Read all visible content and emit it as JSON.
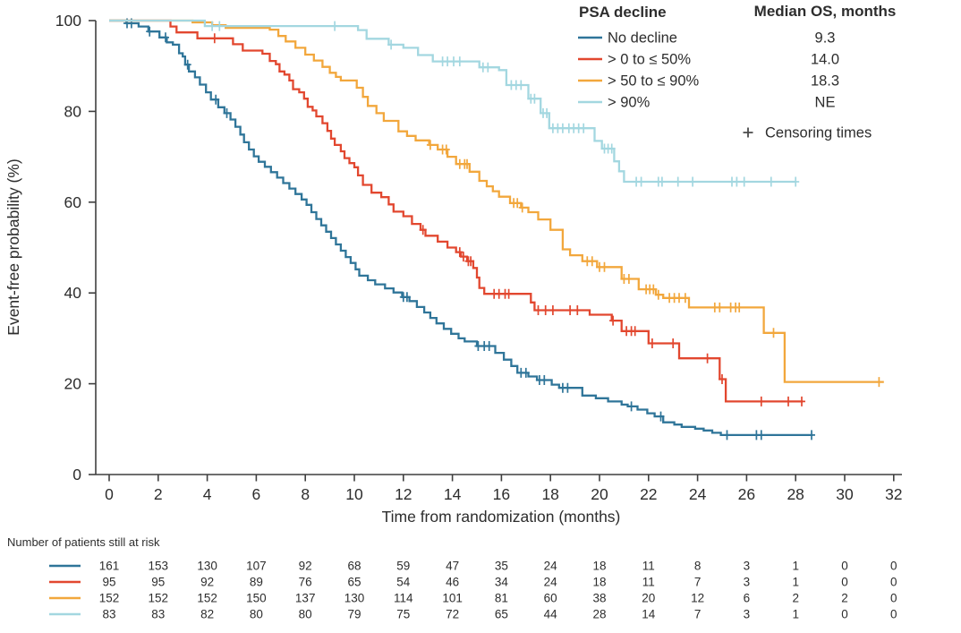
{
  "figure": {
    "y_axis": {
      "label": "Event-free probability (%)",
      "ticks": [
        0,
        20,
        40,
        60,
        80,
        100
      ]
    },
    "x_axis": {
      "label": "Time from randomization (months)",
      "ticks": [
        0,
        2,
        4,
        6,
        8,
        10,
        12,
        14,
        16,
        18,
        20,
        22,
        24,
        26,
        28,
        30,
        32
      ]
    },
    "legend": {
      "title": "PSA decline",
      "median_header": "Median OS, months",
      "censoring_symbol": "+",
      "censoring_label": "Censoring times"
    },
    "risk_table": {
      "title": "Number of patients still at risk"
    }
  },
  "chart_data": {
    "type": "line",
    "subtype": "kaplan-meier-step",
    "title": "",
    "xlabel": "Time from randomization (months)",
    "ylabel": "Event-free probability (%)",
    "xlim": [
      0,
      32
    ],
    "ylim": [
      0,
      100
    ],
    "grid": false,
    "legend_position": "top-right",
    "at_risk_times": [
      0,
      2,
      4,
      6,
      8,
      10,
      12,
      14,
      16,
      18,
      20,
      22,
      24,
      26,
      28,
      30,
      32
    ],
    "series": [
      {
        "name": "No decline",
        "median_os": "9.3",
        "color": "#2f7599",
        "steps": [
          [
            0,
            100
          ],
          [
            0.7,
            99.4
          ],
          [
            1.2,
            98.7
          ],
          [
            1.6,
            97.6
          ],
          [
            2.05,
            96.3
          ],
          [
            2.35,
            95.2
          ],
          [
            2.6,
            94.7
          ],
          [
            2.85,
            92.8
          ],
          [
            3.0,
            92.1
          ],
          [
            3.1,
            90.3
          ],
          [
            3.25,
            88.8
          ],
          [
            3.5,
            87.5
          ],
          [
            3.7,
            85.9
          ],
          [
            3.95,
            84.2
          ],
          [
            4.15,
            82.6
          ],
          [
            4.45,
            80.9
          ],
          [
            4.7,
            79.6
          ],
          [
            4.95,
            78.2
          ],
          [
            5.15,
            76.6
          ],
          [
            5.35,
            74.9
          ],
          [
            5.5,
            73.2
          ],
          [
            5.7,
            71.6
          ],
          [
            5.9,
            70.1
          ],
          [
            6.1,
            68.9
          ],
          [
            6.35,
            67.8
          ],
          [
            6.6,
            66.6
          ],
          [
            6.85,
            65.4
          ],
          [
            7.1,
            64.2
          ],
          [
            7.35,
            63
          ],
          [
            7.6,
            61.8
          ],
          [
            7.85,
            60.6
          ],
          [
            8.05,
            59.4
          ],
          [
            8.25,
            57.8
          ],
          [
            8.45,
            56.3
          ],
          [
            8.65,
            54.9
          ],
          [
            8.85,
            53.5
          ],
          [
            9.05,
            52.1
          ],
          [
            9.25,
            50.7
          ],
          [
            9.45,
            49.3
          ],
          [
            9.65,
            47.9
          ],
          [
            9.85,
            46.6
          ],
          [
            10.05,
            45.2
          ],
          [
            10.2,
            43.8
          ],
          [
            10.55,
            42.8
          ],
          [
            10.85,
            41.9
          ],
          [
            11.25,
            41
          ],
          [
            11.6,
            40.1
          ],
          [
            11.95,
            39.1
          ],
          [
            12.25,
            38.2
          ],
          [
            12.55,
            36.9
          ],
          [
            12.85,
            35.7
          ],
          [
            13.1,
            34.5
          ],
          [
            13.35,
            33.3
          ],
          [
            13.65,
            32.1
          ],
          [
            13.95,
            31
          ],
          [
            14.25,
            30
          ],
          [
            14.5,
            29.3
          ],
          [
            15,
            28.3
          ],
          [
            15.75,
            26.8
          ],
          [
            16.1,
            25.3
          ],
          [
            16.4,
            23.9
          ],
          [
            16.65,
            22.4
          ],
          [
            17.1,
            21.6
          ],
          [
            17.45,
            20.8
          ],
          [
            18.05,
            19.8
          ],
          [
            18.35,
            19.1
          ],
          [
            19.3,
            17.4
          ],
          [
            19.85,
            16.8
          ],
          [
            20.35,
            16.1
          ],
          [
            20.9,
            15.4
          ],
          [
            21.15,
            15
          ],
          [
            21.55,
            14.3
          ],
          [
            21.95,
            13.5
          ],
          [
            22.25,
            12.8
          ],
          [
            22.6,
            11.5
          ],
          [
            23.05,
            11
          ],
          [
            23.35,
            10.5
          ],
          [
            23.9,
            10.1
          ],
          [
            24.25,
            9.7
          ],
          [
            24.6,
            9.2
          ],
          [
            24.95,
            8.7
          ],
          [
            28.7,
            8.7
          ]
        ],
        "censor_times": [
          0.73,
          0.91,
          1.65,
          2.3,
          3.2,
          4.35,
          4.8,
          12.0,
          12.15,
          15.05,
          15.3,
          15.5,
          16.8,
          17.0,
          17.55,
          17.75,
          18.5,
          18.7,
          21.3,
          22.5,
          25.2,
          26.4,
          26.6,
          28.65
        ],
        "at_risk": [
          161,
          153,
          130,
          107,
          92,
          68,
          59,
          47,
          35,
          24,
          18,
          11,
          8,
          3,
          1,
          0,
          0
        ]
      },
      {
        "name": "> 0 to ≤ 50%",
        "median_os": "14.0",
        "color": "#e2472f",
        "steps": [
          [
            0,
            100
          ],
          [
            2.5,
            98.7
          ],
          [
            2.75,
            97.4
          ],
          [
            3.6,
            96.1
          ],
          [
            5.05,
            94.8
          ],
          [
            5.45,
            93.4
          ],
          [
            6.25,
            92.7
          ],
          [
            6.55,
            91.1
          ],
          [
            6.8,
            90.4
          ],
          [
            6.95,
            88.8
          ],
          [
            7.15,
            88.1
          ],
          [
            7.35,
            86.8
          ],
          [
            7.5,
            84.9
          ],
          [
            7.75,
            84.2
          ],
          [
            7.95,
            82.8
          ],
          [
            8.1,
            81
          ],
          [
            8.3,
            80.2
          ],
          [
            8.45,
            78.9
          ],
          [
            8.7,
            77.4
          ],
          [
            8.9,
            75.7
          ],
          [
            9.05,
            74
          ],
          [
            9.2,
            72.6
          ],
          [
            9.45,
            71.2
          ],
          [
            9.6,
            69.7
          ],
          [
            9.8,
            68.6
          ],
          [
            10,
            67.7
          ],
          [
            10.15,
            65.9
          ],
          [
            10.35,
            63.8
          ],
          [
            10.7,
            62.1
          ],
          [
            11.1,
            61.1
          ],
          [
            11.4,
            59.5
          ],
          [
            11.6,
            57.9
          ],
          [
            12,
            56.9
          ],
          [
            12.35,
            55.2
          ],
          [
            12.7,
            53.9
          ],
          [
            12.9,
            52.6
          ],
          [
            13.4,
            51.3
          ],
          [
            13.8,
            50
          ],
          [
            14.15,
            49
          ],
          [
            14.35,
            48
          ],
          [
            14.6,
            47
          ],
          [
            14.85,
            45.5
          ],
          [
            15,
            43.4
          ],
          [
            15.1,
            41.1
          ],
          [
            15.3,
            39.8
          ],
          [
            17.2,
            37.9
          ],
          [
            17.35,
            36.2
          ],
          [
            19.6,
            35.2
          ],
          [
            20.5,
            33.9
          ],
          [
            20.9,
            31.6
          ],
          [
            22,
            28.9
          ],
          [
            23.25,
            25.6
          ],
          [
            24.9,
            21
          ],
          [
            25.15,
            16.1
          ],
          [
            28.3,
            16.1
          ]
        ],
        "censor_times": [
          4.3,
          12.8,
          14.3,
          14.45,
          14.65,
          14.75,
          15.7,
          15.9,
          16.15,
          16.3,
          17.5,
          17.8,
          18.1,
          18.8,
          19.1,
          20.55,
          21.1,
          21.3,
          21.45,
          22.15,
          23.0,
          24.4,
          25.0,
          26.6,
          27.7,
          28.25
        ],
        "at_risk": [
          95,
          95,
          92,
          89,
          76,
          65,
          54,
          46,
          34,
          24,
          18,
          11,
          7,
          3,
          1,
          0,
          0
        ]
      },
      {
        "name": "> 50 to ≤ 90%",
        "median_os": "18.3",
        "color": "#f2a73c",
        "steps": [
          [
            0,
            100
          ],
          [
            3.4,
            99.6
          ],
          [
            4.2,
            99
          ],
          [
            4.75,
            98.4
          ],
          [
            6.55,
            98
          ],
          [
            6.9,
            96.6
          ],
          [
            7.2,
            95.4
          ],
          [
            7.6,
            94
          ],
          [
            8,
            92.5
          ],
          [
            8.35,
            91.2
          ],
          [
            8.7,
            89.8
          ],
          [
            9,
            88.5
          ],
          [
            9.25,
            87.6
          ],
          [
            9.45,
            86.8
          ],
          [
            10.1,
            85.2
          ],
          [
            10.35,
            83.2
          ],
          [
            10.55,
            81.2
          ],
          [
            10.9,
            79.6
          ],
          [
            11.2,
            77.9
          ],
          [
            11.8,
            75.6
          ],
          [
            12.15,
            74.6
          ],
          [
            12.5,
            73.6
          ],
          [
            13.05,
            72.6
          ],
          [
            13.4,
            71.6
          ],
          [
            13.8,
            70
          ],
          [
            14.15,
            68.4
          ],
          [
            14.7,
            66.7
          ],
          [
            15.1,
            64.7
          ],
          [
            15.4,
            63.5
          ],
          [
            15.65,
            62.4
          ],
          [
            15.9,
            61.2
          ],
          [
            16.35,
            59.8
          ],
          [
            16.8,
            58.8
          ],
          [
            17.1,
            57.8
          ],
          [
            17.5,
            56.2
          ],
          [
            18,
            53.9
          ],
          [
            18.5,
            49.6
          ],
          [
            18.8,
            48.3
          ],
          [
            19.3,
            47
          ],
          [
            19.9,
            45.7
          ],
          [
            20.9,
            43.1
          ],
          [
            21.6,
            40.8
          ],
          [
            22.3,
            39.6
          ],
          [
            22.6,
            38.9
          ],
          [
            23.65,
            36.8
          ],
          [
            26.7,
            31.2
          ],
          [
            27.55,
            20.4
          ],
          [
            31.6,
            20.4
          ]
        ],
        "censor_times": [
          13.1,
          13.6,
          13.75,
          14.3,
          14.5,
          14.6,
          16.5,
          16.65,
          16.85,
          19.5,
          19.7,
          20.0,
          20.2,
          21.0,
          21.2,
          21.9,
          22.05,
          22.2,
          22.4,
          22.85,
          23.05,
          23.25,
          23.5,
          24.7,
          24.9,
          25.35,
          25.55,
          25.7,
          27.1,
          31.4
        ],
        "at_risk": [
          152,
          152,
          152,
          150,
          137,
          130,
          114,
          101,
          81,
          60,
          38,
          20,
          12,
          6,
          2,
          2,
          0
        ]
      },
      {
        "name": "> 90%",
        "median_os": "NE",
        "color": "#a3d7e0",
        "steps": [
          [
            0,
            100
          ],
          [
            3.9,
            98.8
          ],
          [
            10.15,
            97.9
          ],
          [
            10.5,
            96
          ],
          [
            11.4,
            94.7
          ],
          [
            12,
            94
          ],
          [
            12.6,
            92.4
          ],
          [
            13.2,
            91
          ],
          [
            15.1,
            89.7
          ],
          [
            15.9,
            89.1
          ],
          [
            16.2,
            85.8
          ],
          [
            17.1,
            82.8
          ],
          [
            17.6,
            79.6
          ],
          [
            17.95,
            76.3
          ],
          [
            19.8,
            73.5
          ],
          [
            20.1,
            71.8
          ],
          [
            20.6,
            69
          ],
          [
            20.8,
            66.8
          ],
          [
            21,
            64.5
          ],
          [
            28,
            64.5
          ]
        ],
        "censor_times": [
          4.2,
          4.5,
          9.2,
          11.5,
          13.6,
          13.8,
          14.05,
          14.3,
          15.25,
          15.45,
          16.4,
          16.6,
          16.8,
          17.2,
          17.35,
          17.7,
          17.85,
          18.1,
          18.3,
          18.5,
          18.75,
          18.95,
          19.15,
          19.35,
          20.2,
          20.35,
          20.5,
          21.5,
          21.7,
          22.4,
          22.55,
          23.2,
          23.8,
          25.4,
          25.6,
          25.9,
          27.0,
          28.0
        ],
        "at_risk": [
          83,
          83,
          82,
          80,
          80,
          79,
          75,
          72,
          65,
          44,
          28,
          14,
          7,
          3,
          1,
          0,
          0
        ]
      }
    ]
  }
}
